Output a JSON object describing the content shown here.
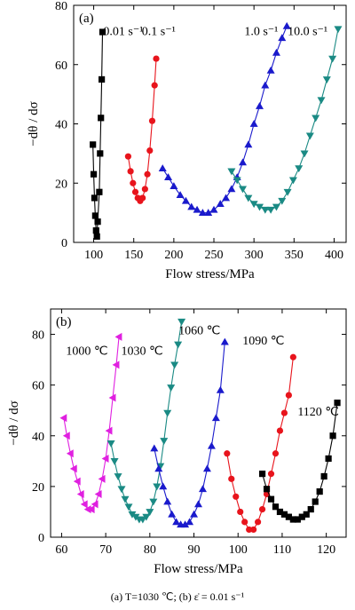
{
  "chart_data": [
    {
      "type": "line",
      "panel_label": "(a)",
      "xlabel": "Flow stress/MPa",
      "ylabel": "−dθ / dσ",
      "xlim": [
        75,
        415
      ],
      "ylim": [
        0,
        80
      ],
      "xticks": [
        100,
        150,
        200,
        250,
        300,
        350,
        400
      ],
      "yticks": [
        0,
        20,
        40,
        60,
        80
      ],
      "series": [
        {
          "name": "0.01 s⁻¹",
          "color": "#000000",
          "marker": "square",
          "x": [
            99,
            100,
            101,
            102,
            103,
            104,
            105,
            107,
            108,
            109,
            110,
            111
          ],
          "y": [
            33,
            23,
            15,
            9,
            4,
            2,
            7,
            17,
            30,
            42,
            55,
            71
          ]
        },
        {
          "name": "0.1 s⁻¹",
          "color": "#e8141c",
          "marker": "circle",
          "x": [
            143,
            146,
            149,
            152,
            155,
            158,
            161,
            164,
            167,
            170,
            173,
            176,
            178
          ],
          "y": [
            29,
            24,
            20,
            17,
            15,
            14,
            15,
            18,
            23,
            31,
            41,
            53,
            62
          ]
        },
        {
          "name": "1.0 s⁻¹",
          "color": "#1a1acc",
          "marker": "triangle-up",
          "x": [
            186,
            193,
            200,
            208,
            215,
            222,
            229,
            236,
            243,
            250,
            258,
            265,
            272,
            279,
            286,
            293,
            300,
            307,
            314,
            321,
            328,
            335,
            341
          ],
          "y": [
            25,
            22,
            19,
            16,
            14,
            12,
            11,
            10,
            10,
            11,
            13,
            15,
            18,
            22,
            27,
            33,
            40,
            46,
            53,
            58,
            64,
            69,
            73
          ]
        },
        {
          "name": "10.0 s⁻¹",
          "color": "#1a8a84",
          "marker": "triangle-down",
          "x": [
            272,
            279,
            286,
            293,
            300,
            307,
            314,
            321,
            328,
            335,
            342,
            349,
            356,
            363,
            370,
            377,
            384,
            391,
            398,
            405
          ],
          "y": [
            24,
            21,
            18,
            15,
            13,
            12,
            11,
            11,
            12,
            14,
            17,
            21,
            25,
            30,
            36,
            42,
            48,
            55,
            62,
            72
          ]
        }
      ],
      "annotations": [
        {
          "text": "0.01 s⁻¹",
          "x": 112,
          "y": 70
        },
        {
          "text": "0.1 s⁻¹",
          "x": 160,
          "y": 70
        },
        {
          "text": "1.0 s⁻¹",
          "x": 288,
          "y": 70
        },
        {
          "text": "10.0 s⁻¹",
          "x": 342,
          "y": 70
        }
      ]
    },
    {
      "type": "line",
      "panel_label": "(b)",
      "xlabel": "Flow stress/MPa",
      "ylabel": "−dθ / dσ",
      "xlim": [
        57.5,
        124.5
      ],
      "ylim": [
        0,
        90
      ],
      "xticks": [
        60,
        70,
        80,
        90,
        100,
        110,
        120
      ],
      "yticks": [
        0,
        20,
        40,
        60,
        80
      ],
      "series": [
        {
          "name": "1000 ℃",
          "color": "#e020e0",
          "marker": "triangle-left",
          "x": [
            60.5,
            61.2,
            62,
            62.8,
            63.6,
            64.4,
            65.2,
            66,
            66.8,
            67.6,
            68.4,
            69.2,
            70,
            70.8,
            71.6,
            72.4,
            73
          ],
          "y": [
            47,
            40,
            33,
            27,
            22,
            17,
            13,
            11,
            11,
            13,
            17,
            23,
            31,
            42,
            55,
            68,
            79
          ]
        },
        {
          "name": "1030 ℃",
          "color": "#1a8a84",
          "marker": "triangle-down",
          "x": [
            71.2,
            72,
            72.8,
            73.6,
            74.4,
            75.2,
            76,
            76.8,
            77.6,
            78.4,
            79.2,
            80,
            80.8,
            81.6,
            82.4,
            83.2,
            84,
            84.8,
            85.6,
            86.4,
            87.2
          ],
          "y": [
            37,
            30,
            24,
            19,
            15,
            12,
            9,
            8,
            7,
            7,
            8,
            10,
            14,
            20,
            28,
            38,
            49,
            59,
            68,
            76,
            85
          ]
        },
        {
          "name": "1060 ℃",
          "color": "#1a1acc",
          "marker": "triangle-up",
          "x": [
            81,
            82,
            83,
            84,
            85,
            86,
            87,
            88,
            89,
            90,
            91,
            92,
            93,
            94,
            95,
            96,
            97
          ],
          "y": [
            35,
            27,
            20,
            14,
            9,
            6,
            5,
            5,
            6,
            9,
            13,
            19,
            27,
            36,
            47,
            58,
            77
          ]
        },
        {
          "name": "1090 ℃",
          "color": "#e8141c",
          "marker": "circle",
          "x": [
            97.5,
            98.5,
            99.5,
            100.5,
            101.5,
            102.5,
            103.5,
            104.5,
            105.5,
            106.5,
            107.5,
            108.5,
            109.5,
            110.5,
            111.5,
            112.5
          ],
          "y": [
            33,
            23,
            16,
            10,
            6,
            3,
            3,
            6,
            11,
            17,
            25,
            33,
            42,
            49,
            56,
            71
          ]
        },
        {
          "name": "1120 ℃",
          "color": "#000000",
          "marker": "square",
          "x": [
            105.5,
            106.5,
            107.5,
            108.5,
            109.5,
            110.5,
            111.5,
            112.5,
            113.5,
            114.5,
            115.5,
            116.5,
            117.5,
            118.5,
            119.5,
            120.5,
            121.5,
            122.5
          ],
          "y": [
            25,
            19,
            15,
            12,
            10,
            9,
            8,
            7,
            7,
            8,
            9,
            11,
            14,
            18,
            24,
            31,
            40,
            53
          ]
        }
      ],
      "annotations": [
        {
          "text": "1000 ℃",
          "x": 61,
          "y": 72
        },
        {
          "text": "1030 ℃",
          "x": 73.5,
          "y": 72
        },
        {
          "text": "1060 ℃",
          "x": 86.5,
          "y": 80
        },
        {
          "text": "1090 ℃",
          "x": 101,
          "y": 76
        },
        {
          "text": "1120 ℃",
          "x": 113.5,
          "y": 48
        }
      ]
    }
  ],
  "caption": "(a) T=1030 ℃; (b)  ε̇ = 0.01 s⁻¹"
}
